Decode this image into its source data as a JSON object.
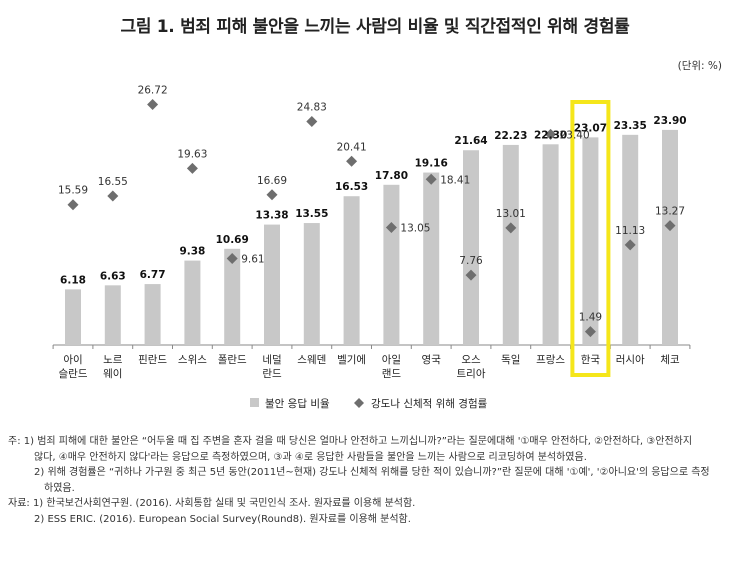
{
  "title": "그림 1. 범죄 피해 불안을 느끼는 사람의 비율 및 직간접적인 위해 경험률",
  "unit": "(단위: %)",
  "chart_data": {
    "type": "bar",
    "categories": [
      [
        "아이",
        "슬란드"
      ],
      [
        "노르",
        "웨이"
      ],
      [
        "핀란드"
      ],
      [
        "스위스"
      ],
      [
        "폴란드"
      ],
      [
        "네덜",
        "란드"
      ],
      [
        "스웨덴"
      ],
      [
        "벨기에"
      ],
      [
        "아일",
        "랜드"
      ],
      [
        "영국"
      ],
      [
        "오스",
        "트리아"
      ],
      [
        "독일"
      ],
      [
        "프랑스"
      ],
      [
        "한국"
      ],
      [
        "러시아"
      ],
      [
        "체코"
      ]
    ],
    "series": [
      {
        "name": "불안 응답 비율",
        "type": "bar",
        "values": [
          6.18,
          6.63,
          6.77,
          9.38,
          10.69,
          13.38,
          13.55,
          16.53,
          17.8,
          19.16,
          21.64,
          22.23,
          22.3,
          23.07,
          23.35,
          23.9
        ]
      },
      {
        "name": "강도나 신체적 위해 경험률",
        "type": "scatter",
        "values": [
          15.59,
          16.55,
          26.72,
          19.63,
          9.61,
          16.69,
          24.83,
          20.41,
          13.05,
          18.41,
          7.76,
          13.01,
          23.4,
          1.49,
          11.13,
          13.27
        ]
      }
    ],
    "bar_labels": [
      "6.18",
      "6.63",
      "6.77",
      "9.38",
      "10.69",
      "13.38",
      "13.55",
      "16.53",
      "17.80",
      "19.16",
      "21.64",
      "22.23",
      "22.30",
      "23.07",
      "23.35",
      "23.90"
    ],
    "point_labels": [
      "15.59",
      "16.55",
      "26.72",
      "19.63",
      "9.61",
      "16.69",
      "24.83",
      "20.41",
      "13.05",
      "18.41",
      "7.76",
      "13.01",
      "23.40",
      "1.49",
      "11.13",
      "13.27"
    ],
    "highlight_category": "한국",
    "highlight_color": "#f5e61a",
    "bar_color": "#c8c8c8",
    "marker_color": "#6e6e6e",
    "ylim": [
      0,
      30
    ],
    "grid": false,
    "legend_position": "bottom"
  },
  "notes": [
    "주: 1) 범죄 피해에 대한 불안은 “어두울 때 집 주변을 혼자 걸을 때 당신은 얼마나 안전하고 느끼십니까?”라는 질문에대해 '①매우 안전하다, ②안전하다, ③안전하지",
    "않다, ④매우 안전하지 않다'라는 응답으로 측정하였으며, ③과 ④로 응답한 사람들을 불안을 느끼는 사람으로 리코딩하여 분석하였음.",
    "2) 위해 경험률은 “귀하나 가구원 중 최근 5년 동안(2011년~현재) 강도나 신체적 위해를 당한 적이 있습니까?”란 질문에 대해 '①예', '②아니요'의 응답으로 측정",
    "하였음.",
    "자료: 1) 한국보건사회연구원. (2016). 사회통합 실태 및 국민인식 조사. 원자료를 이용해 분석함.",
    "2) ESS ERIC. (2016). European Social Survey(Round8). 원자료를 이용해 분석함."
  ]
}
